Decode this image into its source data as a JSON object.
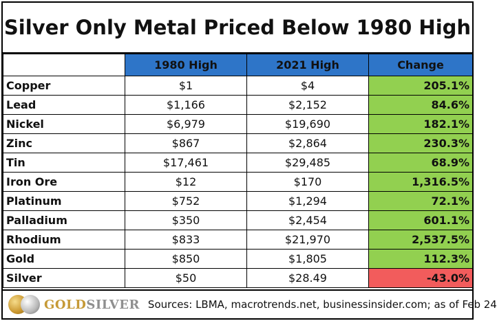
{
  "title": "Silver Only Metal Priced Below 1980 High",
  "headers": [
    "",
    "1980 High",
    "2021 High",
    "Change"
  ],
  "rows": [
    {
      "metal": "Copper",
      "high1980": "$1",
      "high2021": "$4",
      "change": "205.1%",
      "positive": true
    },
    {
      "metal": "Lead",
      "high1980": "$1,166",
      "high2021": "$2,152",
      "change": "84.6%",
      "positive": true
    },
    {
      "metal": "Nickel",
      "high1980": "$6,979",
      "high2021": "$19,690",
      "change": "182.1%",
      "positive": true
    },
    {
      "metal": "Zinc",
      "high1980": "$867",
      "high2021": "$2,864",
      "change": "230.3%",
      "positive": true
    },
    {
      "metal": "Tin",
      "high1980": "$17,461",
      "high2021": "$29,485",
      "change": "68.9%",
      "positive": true
    },
    {
      "metal": "Iron Ore",
      "high1980": "$12",
      "high2021": "$170",
      "change": "1,316.5%",
      "positive": true
    },
    {
      "metal": "Platinum",
      "high1980": "$752",
      "high2021": "$1,294",
      "change": "72.1%",
      "positive": true
    },
    {
      "metal": "Palladium",
      "high1980": "$350",
      "high2021": "$2,454",
      "change": "601.1%",
      "positive": true
    },
    {
      "metal": "Rhodium",
      "high1980": "$833",
      "high2021": "$21,970",
      "change": "2,537.5%",
      "positive": true
    },
    {
      "metal": "Gold",
      "high1980": "$850",
      "high2021": "$1,805",
      "change": "112.3%",
      "positive": true
    },
    {
      "metal": "Silver",
      "high1980": "$50",
      "high2021": "$28.49",
      "change": "-43.0%",
      "positive": false
    }
  ],
  "footer": {
    "brand_gold": "GOLD",
    "brand_silver": "SILVER",
    "source": "Sources: LBMA, macrotrends.net, businessinsider.com; as of Feb 24"
  },
  "colors": {
    "header_blue": "#2e75c8",
    "positive_green": "#92d050",
    "negative_red": "#f25c5c"
  }
}
